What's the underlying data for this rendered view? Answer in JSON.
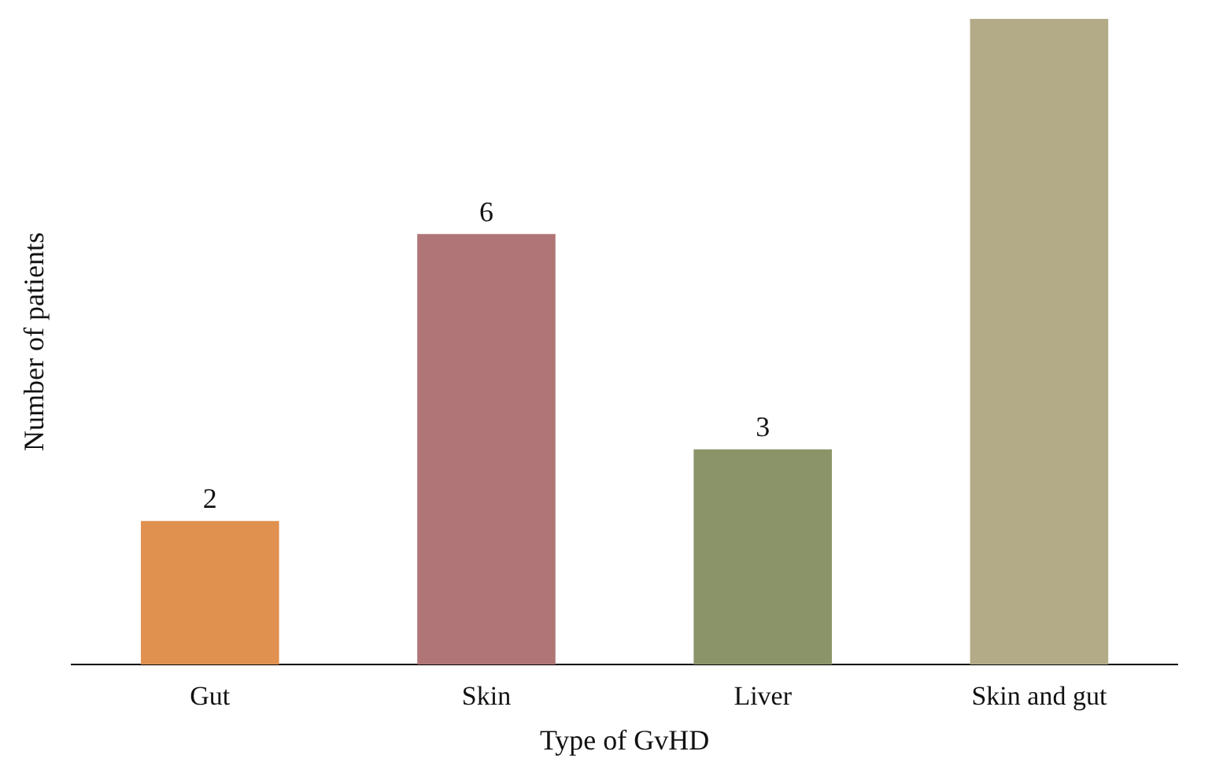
{
  "chart_data": {
    "type": "bar",
    "xlabel": "Type of GvHD",
    "ylabel": "Number of patients",
    "categories": [
      "Gut",
      "Skin",
      "Liver",
      "Skin and gut"
    ],
    "values": [
      2,
      6,
      3,
      9
    ],
    "value_labels": [
      "2",
      "6",
      "3",
      null
    ],
    "colors": [
      "#e0914f",
      "#b07576",
      "#8a9468",
      "#b3ab88"
    ],
    "ylim": [
      0,
      9
    ]
  }
}
